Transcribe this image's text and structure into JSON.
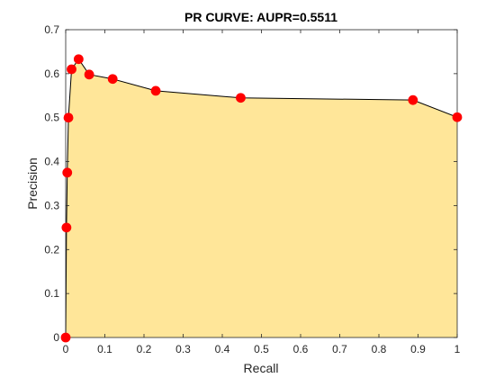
{
  "chart_data": {
    "type": "area",
    "title": "PR CURVE: AUPR=0.5511",
    "xlabel": "Recall",
    "ylabel": "Precision",
    "xlim": [
      0,
      1
    ],
    "ylim": [
      0,
      0.7
    ],
    "x_ticks": [
      0,
      0.1,
      0.2,
      0.3,
      0.4,
      0.5,
      0.6,
      0.7,
      0.8,
      0.9,
      1
    ],
    "y_ticks": [
      0,
      0.1,
      0.2,
      0.3,
      0.4,
      0.5,
      0.6,
      0.7
    ],
    "x_tick_labels": [
      "0",
      "0.1",
      "0.2",
      "0.3",
      "0.4",
      "0.5",
      "0.6",
      "0.7",
      "0.8",
      "0.9",
      "1"
    ],
    "y_tick_labels": [
      "0",
      "0.1",
      "0.2",
      "0.3",
      "0.4",
      "0.5",
      "0.6",
      "0.7"
    ],
    "grid": false,
    "series": [
      {
        "x": [
          0,
          0.002,
          0.004,
          0.007,
          0.015,
          0.033,
          0.06,
          0.12,
          0.23,
          0.447,
          0.887,
          1.0
        ],
        "y": [
          0,
          0.25,
          0.375,
          0.5,
          0.61,
          0.633,
          0.598,
          0.588,
          0.561,
          0.545,
          0.54,
          0.501
        ]
      }
    ],
    "colors": {
      "fill": "#FFE699",
      "line": "#000000",
      "marker": "#FF0000"
    }
  }
}
